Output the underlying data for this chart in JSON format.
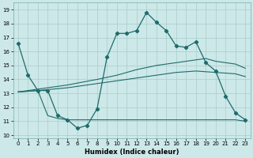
{
  "background_color": "#cde8e8",
  "grid_color": "#a8cccc",
  "line_color": "#1e6b6b",
  "xlabel": "Humidex (Indice chaleur)",
  "xlim": [
    -0.5,
    23.5
  ],
  "ylim": [
    9.8,
    19.5
  ],
  "yticks": [
    10,
    11,
    12,
    13,
    14,
    15,
    16,
    17,
    18,
    19
  ],
  "xticks": [
    0,
    1,
    2,
    3,
    4,
    5,
    6,
    7,
    8,
    9,
    10,
    11,
    12,
    13,
    14,
    15,
    16,
    17,
    18,
    19,
    20,
    21,
    22,
    23
  ],
  "s1_x": [
    0,
    1,
    2,
    3,
    4,
    5,
    6,
    7,
    8,
    9,
    10,
    11,
    12,
    13,
    14,
    15,
    16,
    17,
    18,
    19,
    20,
    21,
    22,
    23
  ],
  "s1_y": [
    16.6,
    14.3,
    13.2,
    13.2,
    11.4,
    11.1,
    10.5,
    10.7,
    11.9,
    15.6,
    17.3,
    17.3,
    17.5,
    18.8,
    18.1,
    17.5,
    16.4,
    16.3,
    16.7,
    15.2,
    14.6,
    12.8,
    11.6,
    11.1
  ],
  "s2_x": [
    0,
    2,
    3,
    4,
    5,
    6,
    7,
    8,
    9,
    10,
    11,
    12,
    13,
    14,
    15,
    16,
    17,
    18,
    19,
    20,
    21,
    22,
    23
  ],
  "s2_y": [
    13.1,
    13.2,
    11.4,
    11.2,
    11.1,
    11.1,
    11.1,
    11.1,
    11.1,
    11.1,
    11.1,
    11.1,
    11.1,
    11.1,
    11.1,
    11.1,
    11.1,
    11.1,
    11.1,
    11.1,
    11.1,
    11.1,
    11.0
  ],
  "s3_x": [
    0,
    2,
    5,
    8,
    10,
    12,
    14,
    16,
    18,
    20,
    22,
    23
  ],
  "s3_y": [
    13.1,
    13.2,
    13.4,
    13.7,
    13.9,
    14.1,
    14.3,
    14.5,
    14.6,
    14.5,
    14.4,
    14.2
  ],
  "s4_x": [
    0,
    2,
    5,
    8,
    10,
    12,
    14,
    16,
    18,
    19,
    20,
    22,
    23
  ],
  "s4_y": [
    13.1,
    13.3,
    13.6,
    14.0,
    14.3,
    14.7,
    15.0,
    15.2,
    15.4,
    15.5,
    15.3,
    15.1,
    14.8
  ]
}
